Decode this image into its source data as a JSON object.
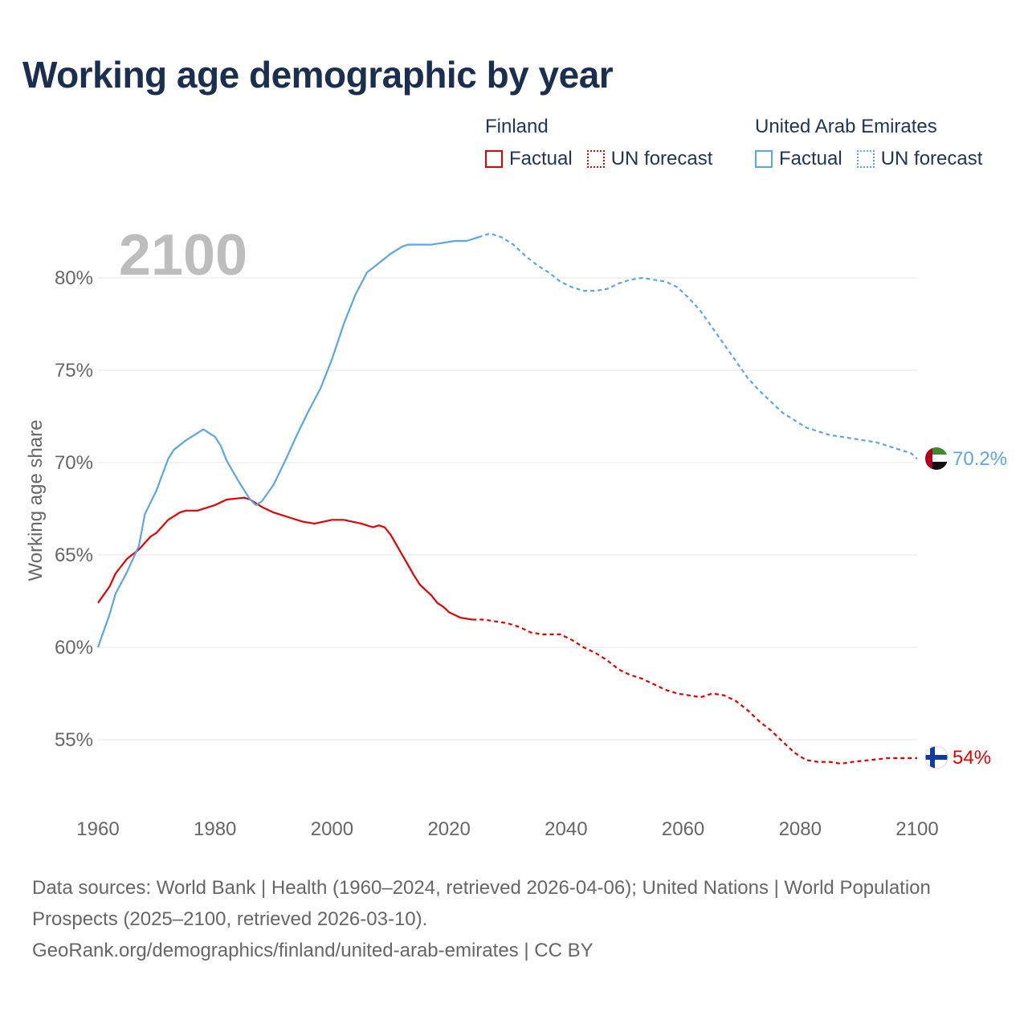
{
  "title": "Working age demographic by year",
  "legend": {
    "finland": {
      "name": "Finland",
      "factual": "Factual",
      "forecast": "UN forecast",
      "color": "#e60000"
    },
    "uae": {
      "name": "United Arab Emirates",
      "factual": "Factual",
      "forecast": "UN forecast",
      "color": "#5aa6e6"
    }
  },
  "chart_data": {
    "type": "line",
    "year_label": "2100",
    "ylabel": "Working age share",
    "xlim": [
      1960,
      2100
    ],
    "ylim": [
      52.5,
      84.5
    ],
    "xticks": [
      1960,
      1980,
      2000,
      2020,
      2040,
      2060,
      2080,
      2100
    ],
    "xtick_labels": [
      "1960",
      "1980",
      "2000",
      "2020",
      "2040",
      "2060",
      "2080",
      "2100"
    ],
    "yticks": [
      55,
      60,
      65,
      70,
      75,
      80
    ],
    "ytick_labels": [
      "55%",
      "60%",
      "65%",
      "70%",
      "75%",
      "80%"
    ],
    "grid": true,
    "series": [
      {
        "name": "Finland",
        "color": "#e60000",
        "end_label": "54%",
        "factual_range": [
          1960,
          2024
        ],
        "forecast_range": [
          2025,
          2100
        ],
        "points": [
          [
            1960,
            62.4
          ],
          [
            1962,
            63.3
          ],
          [
            1963,
            64.0
          ],
          [
            1965,
            64.8
          ],
          [
            1967,
            65.3
          ],
          [
            1969,
            66.0
          ],
          [
            1970,
            66.2
          ],
          [
            1972,
            66.9
          ],
          [
            1974,
            67.3
          ],
          [
            1975,
            67.4
          ],
          [
            1977,
            67.4
          ],
          [
            1980,
            67.7
          ],
          [
            1982,
            68.0
          ],
          [
            1985,
            68.1
          ],
          [
            1986,
            68.0
          ],
          [
            1988,
            67.6
          ],
          [
            1990,
            67.3
          ],
          [
            1993,
            67.0
          ],
          [
            1995,
            66.8
          ],
          [
            1997,
            66.7
          ],
          [
            2000,
            66.9
          ],
          [
            2002,
            66.9
          ],
          [
            2005,
            66.7
          ],
          [
            2007,
            66.5
          ],
          [
            2008,
            66.6
          ],
          [
            2009,
            66.5
          ],
          [
            2010,
            66.1
          ],
          [
            2012,
            65.0
          ],
          [
            2014,
            63.9
          ],
          [
            2015,
            63.4
          ],
          [
            2017,
            62.8
          ],
          [
            2018,
            62.4
          ],
          [
            2019,
            62.2
          ],
          [
            2020,
            61.9
          ],
          [
            2022,
            61.6
          ],
          [
            2024,
            61.5
          ],
          [
            2026,
            61.5
          ],
          [
            2028,
            61.4
          ],
          [
            2030,
            61.3
          ],
          [
            2032,
            61.1
          ],
          [
            2034,
            60.8
          ],
          [
            2036,
            60.7
          ],
          [
            2039,
            60.7
          ],
          [
            2041,
            60.4
          ],
          [
            2043,
            60.0
          ],
          [
            2045,
            59.7
          ],
          [
            2047,
            59.3
          ],
          [
            2049,
            58.8
          ],
          [
            2051,
            58.5
          ],
          [
            2053,
            58.3
          ],
          [
            2055,
            58.0
          ],
          [
            2057,
            57.7
          ],
          [
            2059,
            57.5
          ],
          [
            2061,
            57.4
          ],
          [
            2063,
            57.3
          ],
          [
            2065,
            57.5
          ],
          [
            2067,
            57.4
          ],
          [
            2069,
            57.1
          ],
          [
            2071,
            56.6
          ],
          [
            2073,
            56.0
          ],
          [
            2075,
            55.5
          ],
          [
            2077,
            54.9
          ],
          [
            2079,
            54.3
          ],
          [
            2081,
            53.9
          ],
          [
            2083,
            53.8
          ],
          [
            2085,
            53.8
          ],
          [
            2087,
            53.7
          ],
          [
            2089,
            53.8
          ],
          [
            2092,
            53.9
          ],
          [
            2095,
            54.0
          ],
          [
            2100,
            54.0
          ]
        ]
      },
      {
        "name": "United Arab Emirates",
        "color": "#5aa6e6",
        "end_label": "70.2%",
        "factual_range": [
          1960,
          2024
        ],
        "forecast_range": [
          2025,
          2100
        ],
        "points": [
          [
            1960,
            60.0
          ],
          [
            1962,
            61.8
          ],
          [
            1963,
            62.9
          ],
          [
            1965,
            64.1
          ],
          [
            1967,
            65.5
          ],
          [
            1968,
            67.2
          ],
          [
            1970,
            68.5
          ],
          [
            1972,
            70.2
          ],
          [
            1973,
            70.7
          ],
          [
            1975,
            71.2
          ],
          [
            1977,
            71.6
          ],
          [
            1978,
            71.8
          ],
          [
            1980,
            71.4
          ],
          [
            1981,
            70.9
          ],
          [
            1982,
            70.1
          ],
          [
            1984,
            69.0
          ],
          [
            1986,
            68.0
          ],
          [
            1987,
            67.7
          ],
          [
            1988,
            67.9
          ],
          [
            1990,
            68.8
          ],
          [
            1992,
            70.1
          ],
          [
            1994,
            71.5
          ],
          [
            1996,
            72.8
          ],
          [
            1998,
            74.0
          ],
          [
            2000,
            75.6
          ],
          [
            2002,
            77.5
          ],
          [
            2004,
            79.1
          ],
          [
            2006,
            80.3
          ],
          [
            2008,
            80.8
          ],
          [
            2010,
            81.3
          ],
          [
            2012,
            81.7
          ],
          [
            2013,
            81.8
          ],
          [
            2015,
            81.8
          ],
          [
            2017,
            81.8
          ],
          [
            2019,
            81.9
          ],
          [
            2021,
            82.0
          ],
          [
            2023,
            82.0
          ],
          [
            2025,
            82.2
          ],
          [
            2027,
            82.4
          ],
          [
            2029,
            82.2
          ],
          [
            2031,
            81.8
          ],
          [
            2033,
            81.2
          ],
          [
            2035,
            80.7
          ],
          [
            2037,
            80.3
          ],
          [
            2039,
            79.8
          ],
          [
            2041,
            79.5
          ],
          [
            2043,
            79.3
          ],
          [
            2045,
            79.3
          ],
          [
            2047,
            79.4
          ],
          [
            2049,
            79.7
          ],
          [
            2051,
            79.9
          ],
          [
            2053,
            80.0
          ],
          [
            2055,
            79.9
          ],
          [
            2057,
            79.8
          ],
          [
            2059,
            79.5
          ],
          [
            2061,
            78.9
          ],
          [
            2063,
            78.2
          ],
          [
            2065,
            77.3
          ],
          [
            2067,
            76.4
          ],
          [
            2069,
            75.5
          ],
          [
            2071,
            74.6
          ],
          [
            2073,
            73.9
          ],
          [
            2075,
            73.3
          ],
          [
            2077,
            72.7
          ],
          [
            2079,
            72.3
          ],
          [
            2081,
            71.9
          ],
          [
            2083,
            71.7
          ],
          [
            2085,
            71.5
          ],
          [
            2087,
            71.4
          ],
          [
            2089,
            71.3
          ],
          [
            2091,
            71.2
          ],
          [
            2093,
            71.1
          ],
          [
            2095,
            70.9
          ],
          [
            2097,
            70.7
          ],
          [
            2099,
            70.5
          ],
          [
            2100,
            70.2
          ]
        ]
      }
    ]
  },
  "footer": {
    "line1": "Data sources: World Bank | Health (1960–2024, retrieved 2026-04-06); United Nations | World Population Prospects (2025–2100, retrieved 2026-03-10).",
    "line2": "GeoRank.org/demographics/finland/united-arab-emirates | CC BY"
  }
}
